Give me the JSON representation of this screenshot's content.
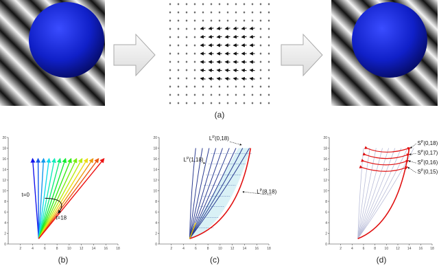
{
  "panels": {
    "a": {
      "label": "(a)"
    },
    "b": {
      "label": "(b)",
      "annotations": [
        "t=0",
        "t=18"
      ]
    },
    "c": {
      "label": "(c)",
      "curve_labels": [
        {
          "base": "L",
          "sup": "P",
          "args": "(0,18)"
        },
        {
          "base": "L",
          "sup": "P",
          "args": "(1,18)"
        },
        {
          "base": "L",
          "sup": "P",
          "args": "(8,18)"
        }
      ]
    },
    "d": {
      "label": "(d)",
      "curve_labels": [
        {
          "base": "S",
          "sup": "P",
          "args": "(0,18)"
        },
        {
          "base": "S",
          "sup": "P",
          "args": "(0,17)"
        },
        {
          "base": "S",
          "sup": "P",
          "args": "(0,16)"
        },
        {
          "base": "S",
          "sup": "P",
          "args": "(0,15)"
        }
      ]
    }
  },
  "axes": {
    "yticks": [
      0,
      2,
      4,
      6,
      8,
      10,
      12,
      14,
      16,
      18,
      20
    ],
    "xticks": [
      2,
      4,
      6,
      8,
      10,
      12,
      14,
      16,
      18
    ]
  }
}
